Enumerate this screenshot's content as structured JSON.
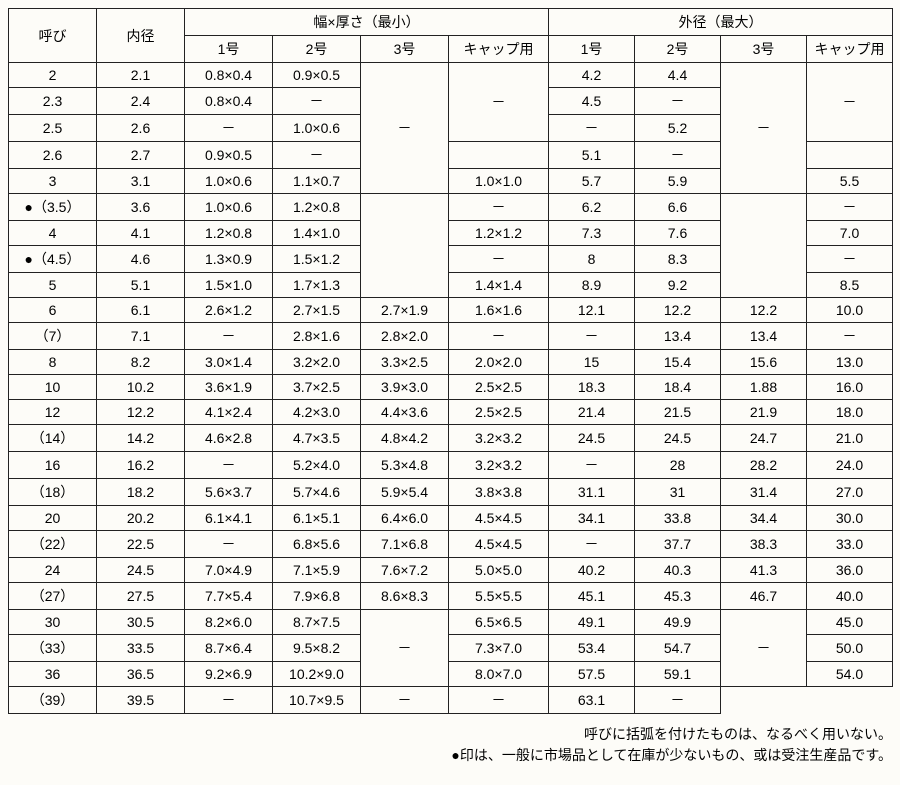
{
  "headers": {
    "col_yobi": "呼び",
    "col_naikei": "内径",
    "group_width": "幅×厚さ（最小）",
    "group_od": "外径（最大）",
    "sub_1": "1号",
    "sub_2": "2号",
    "sub_3": "3号",
    "sub_cap": "キャップ用"
  },
  "rows": [
    {
      "c0": "2",
      "c1": "2.1",
      "c2": "0.8×0.4",
      "c3": "0.9×0.5",
      "c4": "SPAN_DOWN",
      "c5": "SPAN_DOWN",
      "c6": "4.2",
      "c7": "4.4",
      "c8": "SPAN_DOWN",
      "c9": "SPAN_DOWN"
    },
    {
      "c0": "2.3",
      "c1": "2.4",
      "c2": "0.8×0.4",
      "c3": "－",
      "c4": "",
      "c5": "",
      "c6": "4.5",
      "c7": "－",
      "c8": "",
      "c9": ""
    },
    {
      "c0": "2.5",
      "c1": "2.6",
      "c2": "－",
      "c3": "1.0×0.6",
      "c4": "",
      "c5": "END_SPAN_DASH",
      "c6": "－",
      "c7": "5.2",
      "c8": "",
      "c9": "END_SPAN_DASH"
    },
    {
      "c0": "2.6",
      "c1": "2.7",
      "c2": "0.9×0.5",
      "c3": "－",
      "c4": "",
      "c5": "SPAN_DOWN",
      "c6": "5.1",
      "c7": "－",
      "c8": "",
      "c9": "SPAN_DOWN"
    },
    {
      "c0": "3",
      "c1": "3.1",
      "c2": "1.0×0.6",
      "c3": "1.1×0.7",
      "c4": "END_SPAN_DASH",
      "c5": "1.0×1.0",
      "c6": "5.7",
      "c7": "5.9",
      "c8": "END_SPAN_DASH",
      "c9": "5.5"
    },
    {
      "c0": "●（3.5）",
      "c1": "3.6",
      "c2": "1.0×0.6",
      "c3": "1.2×0.8",
      "c4": "SPAN_DOWN",
      "c5": "－",
      "c6": "6.2",
      "c7": "6.6",
      "c8": "SPAN_DOWN",
      "c9": "－"
    },
    {
      "c0": "4",
      "c1": "4.1",
      "c2": "1.2×0.8",
      "c3": "1.4×1.0",
      "c4": "",
      "c5": "1.2×1.2",
      "c6": "7.3",
      "c7": "7.6",
      "c8": "",
      "c9": "7.0"
    },
    {
      "c0": "●（4.5）",
      "c1": "4.6",
      "c2": "1.3×0.9",
      "c3": "1.5×1.2",
      "c4": "",
      "c5": "－",
      "c6": "8",
      "c7": "8.3",
      "c8": "",
      "c9": "－"
    },
    {
      "c0": "5",
      "c1": "5.1",
      "c2": "1.5×1.0",
      "c3": "1.7×1.3",
      "c4": "END_SPAN_BLANK",
      "c5": "1.4×1.4",
      "c6": "8.9",
      "c7": "9.2",
      "c8": "END_SPAN_BLANK",
      "c9": "8.5"
    },
    {
      "c0": "6",
      "c1": "6.1",
      "c2": "2.6×1.2",
      "c3": "2.7×1.5",
      "c4": "2.7×1.9",
      "c5": "1.6×1.6",
      "c6": "12.1",
      "c7": "12.2",
      "c8": "12.2",
      "c9": "10.0"
    },
    {
      "c0": "（7）",
      "c1": "7.1",
      "c2": "－",
      "c3": "2.8×1.6",
      "c4": "2.8×2.0",
      "c5": "－",
      "c6": "－",
      "c7": "13.4",
      "c8": "13.4",
      "c9": "－"
    },
    {
      "c0": "8",
      "c1": "8.2",
      "c2": "3.0×1.4",
      "c3": "3.2×2.0",
      "c4": "3.3×2.5",
      "c5": "2.0×2.0",
      "c6": "15",
      "c7": "15.4",
      "c8": "15.6",
      "c9": "13.0"
    },
    {
      "c0": "10",
      "c1": "10.2",
      "c2": "3.6×1.9",
      "c3": "3.7×2.5",
      "c4": "3.9×3.0",
      "c5": "2.5×2.5",
      "c6": "18.3",
      "c7": "18.4",
      "c8": "1.88",
      "c9": "16.0"
    },
    {
      "c0": "12",
      "c1": "12.2",
      "c2": "4.1×2.4",
      "c3": "4.2×3.0",
      "c4": "4.4×3.6",
      "c5": "2.5×2.5",
      "c6": "21.4",
      "c7": "21.5",
      "c8": "21.9",
      "c9": "18.0"
    },
    {
      "c0": "（14）",
      "c1": "14.2",
      "c2": "4.6×2.8",
      "c3": "4.7×3.5",
      "c4": "4.8×4.2",
      "c5": "3.2×3.2",
      "c6": "24.5",
      "c7": "24.5",
      "c8": "24.7",
      "c9": "21.0"
    },
    {
      "c0": "16",
      "c1": "16.2",
      "c2": "－",
      "c3": "5.2×4.0",
      "c4": "5.3×4.8",
      "c5": "3.2×3.2",
      "c6": "－",
      "c7": "28",
      "c8": "28.2",
      "c9": "24.0"
    },
    {
      "c0": "（18）",
      "c1": "18.2",
      "c2": "5.6×3.7",
      "c3": "5.7×4.6",
      "c4": "5.9×5.4",
      "c5": "3.8×3.8",
      "c6": "31.1",
      "c7": "31",
      "c8": "31.4",
      "c9": "27.0"
    },
    {
      "c0": "20",
      "c1": "20.2",
      "c2": "6.1×4.1",
      "c3": "6.1×5.1",
      "c4": "6.4×6.0",
      "c5": "4.5×4.5",
      "c6": "34.1",
      "c7": "33.8",
      "c8": "34.4",
      "c9": "30.0"
    },
    {
      "c0": "（22）",
      "c1": "22.5",
      "c2": "－",
      "c3": "6.8×5.6",
      "c4": "7.1×6.8",
      "c5": "4.5×4.5",
      "c6": "－",
      "c7": "37.7",
      "c8": "38.3",
      "c9": "33.0"
    },
    {
      "c0": "24",
      "c1": "24.5",
      "c2": "7.0×4.9",
      "c3": "7.1×5.9",
      "c4": "7.6×7.2",
      "c5": "5.0×5.0",
      "c6": "40.2",
      "c7": "40.3",
      "c8": "41.3",
      "c9": "36.0"
    },
    {
      "c0": "（27）",
      "c1": "27.5",
      "c2": "7.7×5.4",
      "c3": "7.9×6.8",
      "c4": "8.6×8.3",
      "c5": "5.5×5.5",
      "c6": "45.1",
      "c7": "45.3",
      "c8": "46.7",
      "c9": "40.0"
    },
    {
      "c0": "30",
      "c1": "30.5",
      "c2": "8.2×6.0",
      "c3": "8.7×7.5",
      "c4": "SPAN_DOWN",
      "c5": "6.5×6.5",
      "c6": "49.1",
      "c7": "49.9",
      "c8": "SPAN_DOWN",
      "c9": "45.0"
    },
    {
      "c0": "（33）",
      "c1": "33.5",
      "c2": "8.7×6.4",
      "c3": "9.5×8.2",
      "c4": "",
      "c5": "7.3×7.0",
      "c6": "53.4",
      "c7": "54.7",
      "c8": "",
      "c9": "50.0"
    },
    {
      "c0": "36",
      "c1": "36.5",
      "c2": "9.2×6.9",
      "c3": "10.2×9.0",
      "c4": "END_SPAN_DASH",
      "c5": "8.0×7.0",
      "c6": "57.5",
      "c7": "59.1",
      "c8": "END_SPAN_DASH",
      "c9": "54.0"
    },
    {
      "c0": "（39）",
      "c1": "39.5",
      "c2": "－",
      "c3": "10.7×9.5",
      "c4": "SKIP",
      "c5": "－",
      "c6": "－",
      "c7": "63.1",
      "c8": "SKIP",
      "c9": "－"
    }
  ],
  "footnote": {
    "line1": "呼びに括弧を付けたものは、なるべく用いない。",
    "line2": "●印は、一般に市場品として在庫が少ないもの、或は受注生産品です。"
  },
  "style": {
    "border_color": "#222",
    "background": "#fdfcf8",
    "font_size": 14
  }
}
